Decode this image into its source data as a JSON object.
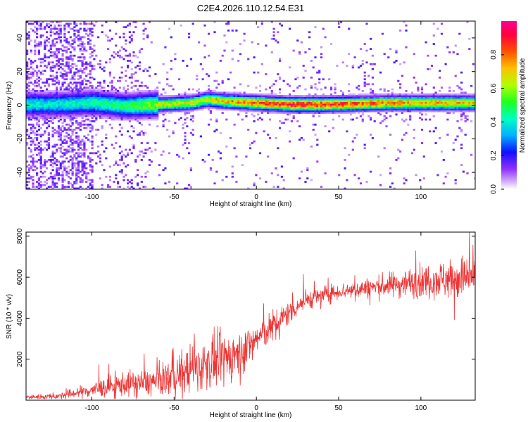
{
  "title": "C2E4.2026.110.12.54.E31",
  "chart_data": [
    {
      "type": "heatmap",
      "xlabel": "Height of straight line (km)",
      "ylabel": "Frequency (Hz)",
      "xlim": [
        -140,
        133
      ],
      "ylim": [
        -50,
        50
      ],
      "xticks": [
        -100,
        -50,
        0,
        50,
        100
      ],
      "yticks": [
        -40,
        -20,
        0,
        20,
        40
      ],
      "colorbar": {
        "label": "Normalized spectral amplitude",
        "range": [
          0.0,
          1.0
        ],
        "ticks": [
          0.0,
          0.2,
          0.4,
          0.6,
          0.8
        ],
        "colors": [
          "#ffffff",
          "#c8a0ff",
          "#8000ff",
          "#0000ff",
          "#00c8ff",
          "#00ffa0",
          "#40ff00",
          "#c8ff00",
          "#ffa000",
          "#ff2000",
          "#ff0080"
        ]
      },
      "ridge": {
        "x": [
          -120,
          -100,
          -80,
          -60,
          -40,
          -30,
          -20,
          0,
          20,
          40,
          60,
          80,
          100,
          120,
          133
        ],
        "freq": [
          0,
          1,
          -1,
          0,
          1,
          3,
          2,
          1,
          0,
          0,
          0.5,
          1,
          1,
          1,
          1
        ],
        "peak_amplitude": [
          0.45,
          0.5,
          0.55,
          0.7,
          0.75,
          0.8,
          0.85,
          0.95,
          1.0,
          1.0,
          0.95,
          0.9,
          0.85,
          0.85,
          0.8
        ]
      }
    },
    {
      "type": "line",
      "xlabel": "Height of straight line (km)",
      "ylabel": "SNR (10 * v/v)",
      "xlim": [
        -140,
        133
      ],
      "ylim": [
        0,
        8200
      ],
      "xticks": [
        -100,
        -50,
        0,
        50,
        100
      ],
      "yticks": [
        2000,
        4000,
        6000,
        8000
      ],
      "series": [
        {
          "name": "SNR",
          "color": "#ee3333",
          "x_trend": [
            -140,
            -120,
            -100,
            -80,
            -60,
            -40,
            -20,
            -10,
            0,
            10,
            20,
            30,
            50,
            70,
            90,
            110,
            133
          ],
          "y_trend": [
            150,
            200,
            500,
            800,
            900,
            1500,
            2000,
            2300,
            3000,
            3600,
            4300,
            4900,
            5300,
            5500,
            5700,
            5900,
            6000
          ],
          "y_spread": [
            100,
            150,
            400,
            600,
            700,
            1200,
            1300,
            1100,
            800,
            800,
            600,
            500,
            400,
            500,
            700,
            900,
            1200
          ],
          "samples": 1400
        }
      ]
    }
  ]
}
